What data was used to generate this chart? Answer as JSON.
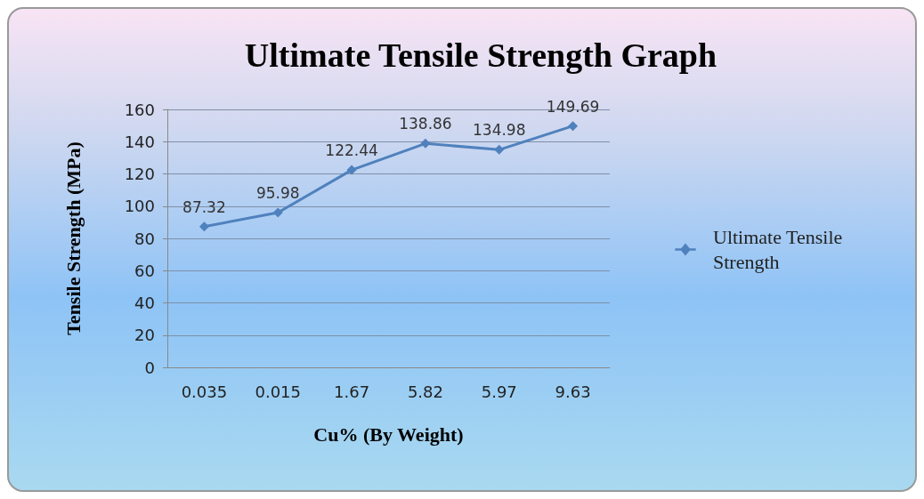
{
  "chart_data": {
    "type": "line",
    "title": "Ultimate Tensile Strength Graph",
    "xlabel": "Cu% (By Weight)",
    "ylabel": "Tensile Strength (MPa)",
    "categories": [
      "0.035",
      "0.015",
      "1.67",
      "5.82",
      "5.97",
      "9.63"
    ],
    "series": [
      {
        "name": "Ultimate Tensile Strength",
        "color": "#4f81bd",
        "values": [
          87.32,
          95.98,
          122.44,
          138.86,
          134.98,
          149.69
        ]
      }
    ],
    "ylim": [
      0,
      160
    ],
    "yticks": [
      0,
      20,
      40,
      60,
      80,
      100,
      120,
      140,
      160
    ],
    "grid": "y",
    "legend": "right",
    "marker": "diamond",
    "line_style": "solid",
    "data_labels": true
  }
}
